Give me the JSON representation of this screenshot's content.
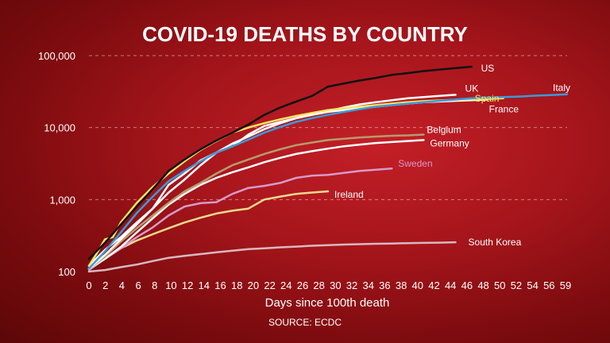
{
  "chart_data": {
    "type": "line",
    "title": "COVID-19 DEATHS BY COUNTRY",
    "xlabel": "Days since 100th death",
    "source": "SOURCE: ECDC",
    "yscale": "log",
    "ylim": [
      100,
      100000
    ],
    "xlim": [
      0,
      60
    ],
    "grid": true,
    "legend": "inline labels at line ends",
    "y_ticks": [
      {
        "value": 100,
        "label": "100"
      },
      {
        "value": 1000,
        "label": "1,000"
      },
      {
        "value": 10000,
        "label": "10,000"
      },
      {
        "value": 100000,
        "label": "100,000"
      }
    ],
    "x_ticks": [
      {
        "value": 0,
        "label": "0"
      },
      {
        "value": 2,
        "label": "2"
      },
      {
        "value": 4,
        "label": "4"
      },
      {
        "value": 6,
        "label": "6"
      },
      {
        "value": 8,
        "label": "8"
      },
      {
        "value": 10,
        "label": "10"
      },
      {
        "value": 12,
        "label": "12"
      },
      {
        "value": 14,
        "label": "14"
      },
      {
        "value": 16,
        "label": "16"
      },
      {
        "value": 18,
        "label": "18"
      },
      {
        "value": 20,
        "label": "20"
      },
      {
        "value": 22,
        "label": "22"
      },
      {
        "value": 24,
        "label": "24"
      },
      {
        "value": 26,
        "label": "26"
      },
      {
        "value": 28,
        "label": "28"
      },
      {
        "value": 30,
        "label": "30"
      },
      {
        "value": 32,
        "label": "32"
      },
      {
        "value": 34,
        "label": "34"
      },
      {
        "value": 36,
        "label": "36"
      },
      {
        "value": 38,
        "label": "38"
      },
      {
        "value": 40,
        "label": "40"
      },
      {
        "value": 42,
        "label": "42"
      },
      {
        "value": 44,
        "label": "44"
      },
      {
        "value": 46,
        "label": "46"
      },
      {
        "value": 48,
        "label": "48"
      },
      {
        "value": 50,
        "label": "50"
      },
      {
        "value": 52,
        "label": "52"
      },
      {
        "value": 54,
        "label": "54"
      },
      {
        "value": 56,
        "label": "56"
      },
      {
        "value": 59,
        "label": "59"
      }
    ],
    "series": [
      {
        "name": "US",
        "color": "#111111",
        "label_color": "#ffffff",
        "x": [
          0,
          2,
          4,
          6,
          8,
          10,
          12,
          14,
          16,
          18,
          20,
          22,
          24,
          26,
          28,
          30,
          32,
          34,
          36,
          38,
          40,
          42,
          44,
          46,
          48
        ],
        "y": [
          150,
          250,
          450,
          800,
          1400,
          2500,
          3600,
          5000,
          6600,
          8500,
          11000,
          15000,
          19000,
          23000,
          27500,
          37000,
          41000,
          45000,
          49000,
          54000,
          57000,
          61000,
          64000,
          67000,
          70000
        ]
      },
      {
        "name": "UK",
        "color": "#ffffff",
        "label_color": "#ffffff",
        "x": [
          0,
          2,
          4,
          6,
          8,
          10,
          12,
          14,
          16,
          18,
          20,
          22,
          24,
          26,
          28,
          30,
          32,
          34,
          36,
          38,
          40,
          42,
          44,
          46
        ],
        "y": [
          110,
          170,
          280,
          450,
          750,
          1250,
          1900,
          3000,
          4500,
          6000,
          7500,
          9500,
          11500,
          13500,
          15500,
          17000,
          19000,
          21000,
          22500,
          24000,
          25500,
          26500,
          27500,
          28500
        ]
      },
      {
        "name": "Italy",
        "color": "#3a9ad9",
        "label_color": "#ffffff",
        "x": [
          0,
          2,
          4,
          6,
          8,
          10,
          12,
          14,
          16,
          18,
          20,
          22,
          24,
          26,
          28,
          30,
          32,
          34,
          36,
          38,
          40,
          42,
          44,
          46,
          48,
          50,
          52,
          54,
          56,
          58,
          60
        ],
        "y": [
          110,
          190,
          350,
          650,
          1100,
          1800,
          2500,
          3400,
          4500,
          5500,
          6800,
          8500,
          10200,
          12000,
          13500,
          15000,
          16500,
          18000,
          19500,
          20500,
          21500,
          22500,
          23500,
          24500,
          25500,
          26000,
          26500,
          27000,
          27700,
          28300,
          29000
        ]
      },
      {
        "name": "Spain",
        "color": "#f5e663",
        "label_color": "#f5e663",
        "x": [
          0,
          1,
          2,
          3,
          4,
          6,
          8,
          10,
          12,
          14,
          16,
          18,
          20,
          22,
          24,
          26,
          28,
          30,
          32,
          34,
          36,
          38,
          40,
          42,
          44,
          46,
          48,
          50,
          52
        ],
        "y": [
          120,
          180,
          280,
          300,
          480,
          900,
          1500,
          2300,
          3400,
          4900,
          6500,
          8500,
          10000,
          11500,
          13000,
          14500,
          16000,
          17500,
          18500,
          19500,
          20500,
          21500,
          22500,
          23300,
          23800,
          24300,
          24700,
          25000,
          25500
        ]
      },
      {
        "name": "France",
        "color": "#ffffff",
        "label_color": "#ffffff",
        "x": [
          0,
          2,
          4,
          6,
          8,
          10,
          12,
          14,
          16,
          18,
          20,
          22,
          24,
          26,
          28,
          30,
          32,
          34,
          36,
          38,
          40,
          42,
          44,
          46,
          48,
          50
        ],
        "y": [
          120,
          200,
          300,
          480,
          750,
          1600,
          2300,
          3500,
          4500,
          5500,
          8000,
          10500,
          12000,
          13500,
          15000,
          16500,
          17500,
          18500,
          19500,
          20500,
          21500,
          22500,
          23000,
          23500,
          24000,
          24500
        ]
      },
      {
        "name": "Belgium",
        "color": "#b89a6e",
        "label_color": "#ffffff",
        "x": [
          0,
          2,
          4,
          6,
          8,
          10,
          12,
          14,
          16,
          18,
          20,
          22,
          24,
          26,
          28,
          30,
          32,
          34,
          36,
          38,
          40,
          42
        ],
        "y": [
          110,
          160,
          260,
          400,
          600,
          900,
          1300,
          1700,
          2300,
          3000,
          3600,
          4300,
          5000,
          5700,
          6200,
          6700,
          7000,
          7300,
          7500,
          7700,
          7800,
          8000
        ]
      },
      {
        "name": "Germany",
        "color": "#ffffff",
        "label_color": "#ffffff",
        "x": [
          0,
          2,
          4,
          6,
          8,
          10,
          12,
          14,
          16,
          18,
          20,
          22,
          24,
          26,
          28,
          30,
          32,
          34,
          36,
          38,
          40,
          42
        ],
        "y": [
          110,
          150,
          220,
          350,
          550,
          850,
          1200,
          1600,
          2000,
          2400,
          2800,
          3300,
          3800,
          4300,
          4700,
          5100,
          5500,
          5800,
          6100,
          6300,
          6500,
          6700
        ]
      },
      {
        "name": "Sweden",
        "color": "#d79ac8",
        "label_color": "#d79ac8",
        "x": [
          0,
          2,
          4,
          6,
          8,
          10,
          12,
          14,
          16,
          18,
          20,
          22,
          24,
          26,
          28,
          30,
          32,
          34,
          36,
          38
        ],
        "y": [
          105,
          150,
          210,
          300,
          410,
          600,
          800,
          890,
          920,
          1200,
          1450,
          1550,
          1700,
          2000,
          2150,
          2200,
          2350,
          2500,
          2600,
          2700
        ]
      },
      {
        "name": "Ireland",
        "color": "#f0d98c",
        "label_color": "#ffffff",
        "x": [
          0,
          2,
          4,
          6,
          8,
          10,
          12,
          14,
          16,
          18,
          20,
          22,
          24,
          26,
          28,
          30
        ],
        "y": [
          110,
          150,
          210,
          270,
          330,
          400,
          480,
          560,
          640,
          700,
          750,
          1000,
          1100,
          1200,
          1250,
          1300
        ]
      },
      {
        "name": "South Korea",
        "color": "#d9b8c0",
        "label_color": "#ffffff",
        "x": [
          0,
          2,
          4,
          6,
          8,
          10,
          12,
          14,
          16,
          18,
          20,
          22,
          24,
          26,
          28,
          30,
          32,
          34,
          36,
          38,
          40,
          42,
          44,
          46
        ],
        "y": [
          100,
          105,
          115,
          125,
          140,
          155,
          165,
          175,
          185,
          195,
          205,
          210,
          217,
          222,
          228,
          233,
          237,
          240,
          243,
          245,
          248,
          250,
          252,
          255
        ]
      }
    ]
  }
}
